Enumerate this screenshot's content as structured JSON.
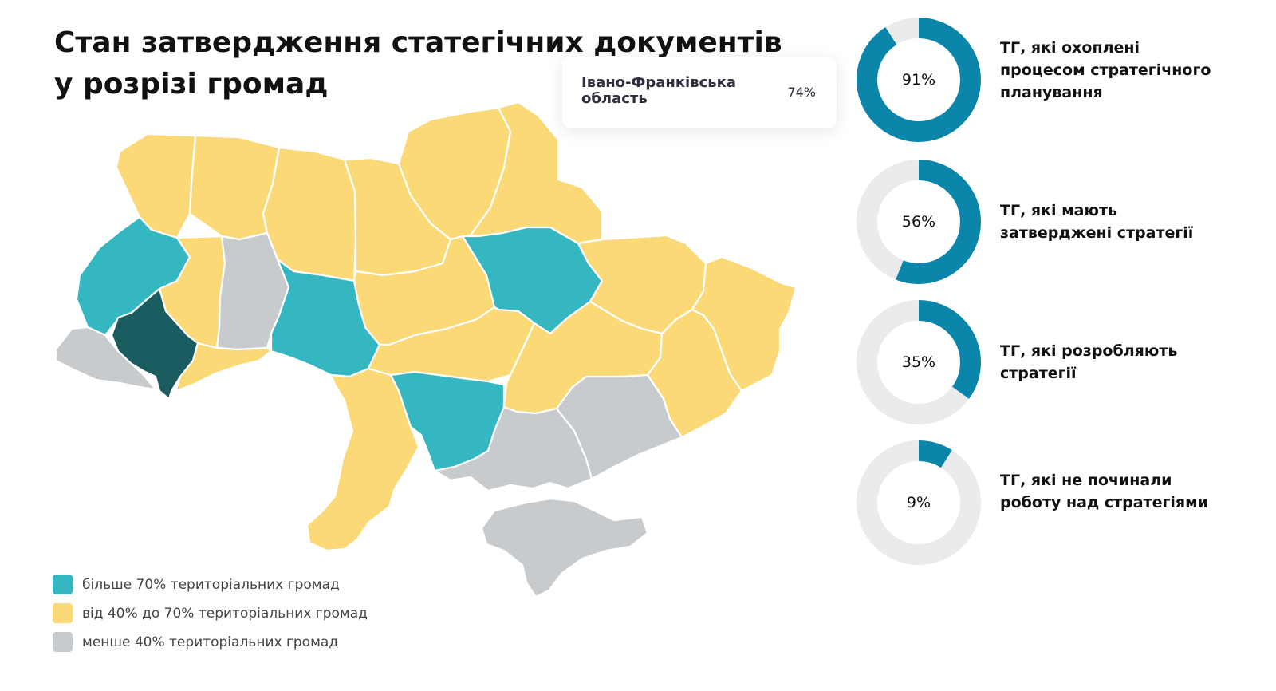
{
  "title": {
    "line1": "Стан затвердження статегічних документів",
    "line2": "у розрізі громад"
  },
  "tooltip": {
    "region": "Івано-Франківська область",
    "percent": "74%"
  },
  "legend": [
    {
      "label": "більше 70% територіальних громад",
      "color": "#35b7c1"
    },
    {
      "label": "від 40% до 70% територіальних громад",
      "color": "#fbd977"
    },
    {
      "label": "менше 40% територіальних громад",
      "color": "#c8cbce"
    }
  ],
  "stats": [
    {
      "percent_label": "91%",
      "value": 91,
      "description": "ТГ, які охоплені процесом стратегічного планування"
    },
    {
      "percent_label": "56%",
      "value": 56,
      "description": "ТГ, які мають затверджені стратегії"
    },
    {
      "percent_label": "35%",
      "value": 35,
      "description": "ТГ, які розробляють стратегії"
    },
    {
      "percent_label": "9%",
      "value": 9,
      "description": "ТГ, які не починали роботу над стратегіями"
    }
  ],
  "colors": {
    "high": "#35b7c1",
    "mid": "#fbd977",
    "low": "#c8cbce",
    "selected": "#1a5c5f",
    "donut_fill": "#0b86aa",
    "donut_track": "#ebebeb"
  },
  "map": {
    "selected_region": "Івано-Франківська область",
    "regions": [
      {
        "id": "volyn",
        "category": "mid"
      },
      {
        "id": "rivne",
        "category": "mid"
      },
      {
        "id": "zhytomyr",
        "category": "mid"
      },
      {
        "id": "kyiv",
        "category": "mid"
      },
      {
        "id": "chernihiv",
        "category": "mid"
      },
      {
        "id": "sumy",
        "category": "mid"
      },
      {
        "id": "lviv",
        "category": "high"
      },
      {
        "id": "ternopil",
        "category": "mid"
      },
      {
        "id": "khmelnytskyi",
        "category": "low"
      },
      {
        "id": "vinnytsia",
        "category": "high"
      },
      {
        "id": "cherkasy",
        "category": "mid"
      },
      {
        "id": "poltava",
        "category": "high"
      },
      {
        "id": "kharkiv",
        "category": "mid"
      },
      {
        "id": "luhansk",
        "category": "mid"
      },
      {
        "id": "zakarpattia",
        "category": "low"
      },
      {
        "id": "ivano-frankivsk",
        "category": "selected"
      },
      {
        "id": "chernivtsi",
        "category": "mid"
      },
      {
        "id": "kirovohrad",
        "category": "mid"
      },
      {
        "id": "dnipropetrovsk",
        "category": "mid"
      },
      {
        "id": "donetsk",
        "category": "mid"
      },
      {
        "id": "odesa",
        "category": "mid"
      },
      {
        "id": "mykolaiv",
        "category": "high"
      },
      {
        "id": "kherson",
        "category": "low"
      },
      {
        "id": "zaporizhzhia",
        "category": "low"
      },
      {
        "id": "crimea",
        "category": "low"
      }
    ]
  }
}
